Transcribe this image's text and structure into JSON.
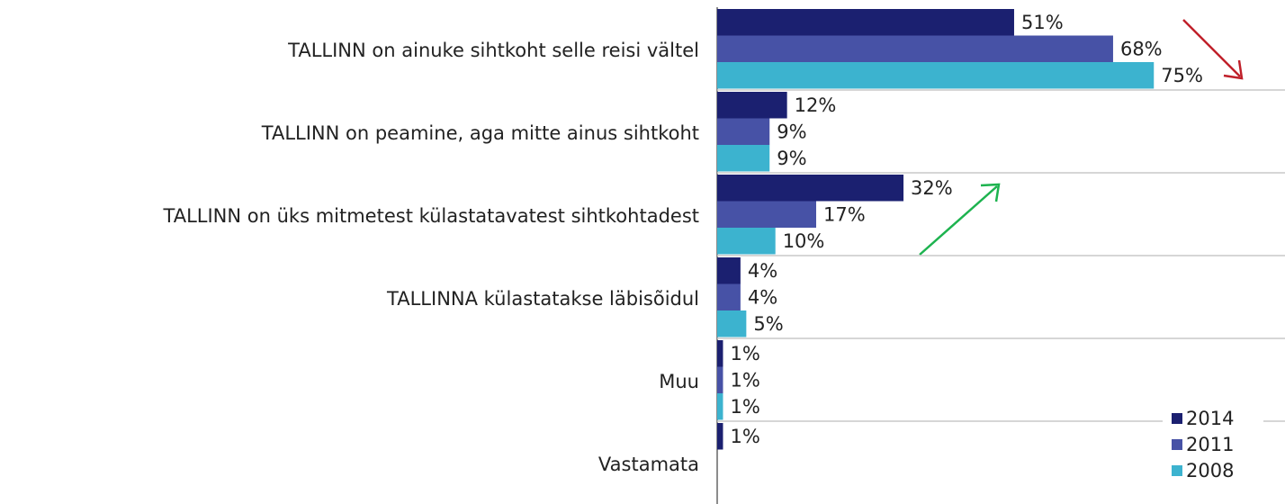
{
  "chart_data": {
    "type": "bar",
    "orientation": "horizontal",
    "categories": [
      "TALLINN on ainuke sihtkoht selle reisi vältel",
      "TALLINN on peamine, aga mitte ainus sihtkoht",
      "TALLINN on üks mitmetest külastatavatest sihtkohtadest",
      "TALLINNA külastatakse läbisõidul",
      "Muu",
      "Vastamata"
    ],
    "series": [
      {
        "name": "2014",
        "color": "#1b2070",
        "values": [
          51,
          12,
          32,
          4,
          1,
          1
        ],
        "value_labels": [
          "51%",
          "12%",
          "32%",
          "4%",
          "1%",
          "1%"
        ]
      },
      {
        "name": "2011",
        "color": "#4752a6",
        "values": [
          68,
          9,
          17,
          4,
          1,
          null
        ],
        "value_labels": [
          "68%",
          "9%",
          "17%",
          "4%",
          "1%",
          null
        ]
      },
      {
        "name": "2008",
        "color": "#3cb3cf",
        "values": [
          75,
          9,
          10,
          5,
          1,
          null
        ],
        "value_labels": [
          "75%",
          "9%",
          "10%",
          "5%",
          "1%",
          null
        ]
      }
    ],
    "xlim": [
      0,
      100
    ],
    "legend": "lower right"
  }
}
